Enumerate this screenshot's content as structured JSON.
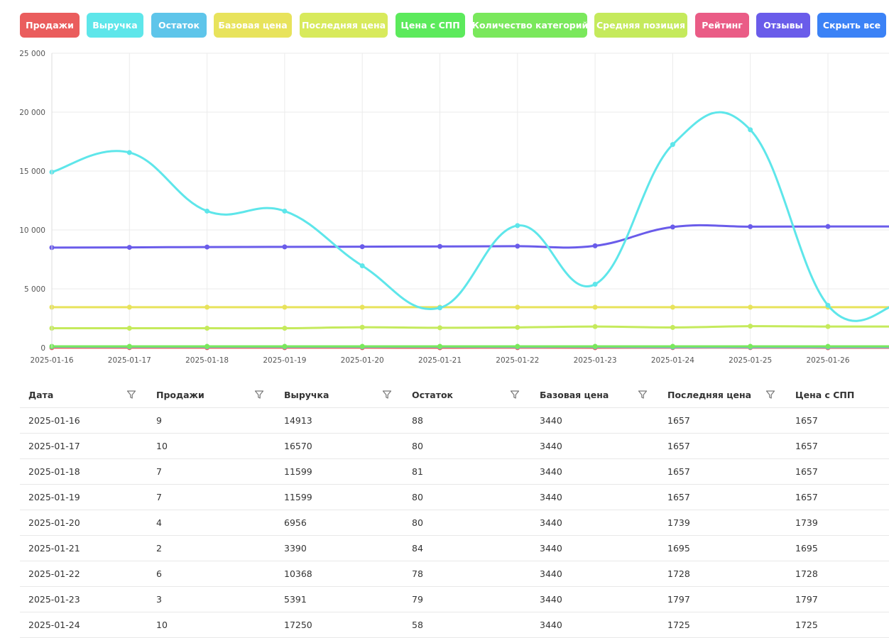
{
  "buttons": [
    {
      "label": "Продажи",
      "color": "#ea5d5d"
    },
    {
      "label": "Выручка",
      "color": "#5ee6ea"
    },
    {
      "label": "Остаток",
      "color": "#5ec5ea"
    },
    {
      "label": "Базовая цена",
      "color": "#e8e35c"
    },
    {
      "label": "Последняя цена",
      "color": "#d8ea5c"
    },
    {
      "label": "Цена с СПП",
      "color": "#5cea5c"
    },
    {
      "label": "Количество категорий",
      "color": "#7ae85c"
    },
    {
      "label": "Средняя позиция",
      "color": "#c5ea5c"
    },
    {
      "label": "Рейтинг",
      "color": "#ea5c86"
    },
    {
      "label": "Отзывы",
      "color": "#6a5cea"
    },
    {
      "label": "Скрыть все",
      "color": "#3b82f6"
    }
  ],
  "chart_data": {
    "type": "line",
    "ylim": [
      0,
      25000
    ],
    "yticks": [
      "0",
      "5 000",
      "10 000",
      "15 000",
      "20 000",
      "25 000"
    ],
    "ytick_values": [
      0,
      5000,
      10000,
      15000,
      20000,
      25000
    ],
    "grid": true,
    "x": [
      "2025-01-16",
      "2025-01-17",
      "2025-01-18",
      "2025-01-19",
      "2025-01-20",
      "2025-01-21",
      "2025-01-22",
      "2025-01-23",
      "2025-01-24",
      "2025-01-25",
      "2025-01-26"
    ],
    "series": [
      {
        "key": "revenue",
        "color": "#5ee6ea",
        "values": [
          14913,
          16570,
          11599,
          11599,
          6956,
          3390,
          10368,
          5391,
          17250,
          18500,
          3600
        ]
      },
      {
        "key": "reviews",
        "color": "#6a5cea",
        "values": [
          8500,
          8520,
          8550,
          8560,
          8580,
          8600,
          8620,
          8650,
          10250,
          10280,
          10290
        ]
      },
      {
        "key": "base_price",
        "color": "#e8e35c",
        "values": [
          3440,
          3440,
          3440,
          3440,
          3440,
          3440,
          3440,
          3440,
          3440,
          3440,
          3440
        ]
      },
      {
        "key": "avg_position",
        "color": "#c5ea5c",
        "values": [
          1657,
          1657,
          1657,
          1657,
          1739,
          1695,
          1728,
          1797,
          1725,
          1830,
          1800
        ]
      },
      {
        "key": "category_count",
        "color": "#7ae85c",
        "values": [
          120,
          120,
          120,
          120,
          120,
          120,
          120,
          120,
          120,
          120,
          120
        ]
      },
      {
        "key": "stock",
        "color": "#5ec5ea",
        "values": [
          88,
          80,
          81,
          80,
          80,
          84,
          78,
          79,
          58,
          60,
          60
        ]
      },
      {
        "key": "sales",
        "color": "#ea5d5d",
        "values": [
          9,
          10,
          7,
          7,
          4,
          2,
          6,
          3,
          10,
          11,
          2
        ]
      }
    ]
  },
  "table": {
    "columns": [
      "Дата",
      "Продажи",
      "Выручка",
      "Остаток",
      "Базовая цена",
      "Последняя цена",
      "Цена с СПП"
    ],
    "rows": [
      [
        "2025-01-16",
        "9",
        "14913",
        "88",
        "3440",
        "1657",
        "1657"
      ],
      [
        "2025-01-17",
        "10",
        "16570",
        "80",
        "3440",
        "1657",
        "1657"
      ],
      [
        "2025-01-18",
        "7",
        "11599",
        "81",
        "3440",
        "1657",
        "1657"
      ],
      [
        "2025-01-19",
        "7",
        "11599",
        "80",
        "3440",
        "1657",
        "1657"
      ],
      [
        "2025-01-20",
        "4",
        "6956",
        "80",
        "3440",
        "1739",
        "1739"
      ],
      [
        "2025-01-21",
        "2",
        "3390",
        "84",
        "3440",
        "1695",
        "1695"
      ],
      [
        "2025-01-22",
        "6",
        "10368",
        "78",
        "3440",
        "1728",
        "1728"
      ],
      [
        "2025-01-23",
        "3",
        "5391",
        "79",
        "3440",
        "1797",
        "1797"
      ],
      [
        "2025-01-24",
        "10",
        "17250",
        "58",
        "3440",
        "1725",
        "1725"
      ]
    ]
  }
}
